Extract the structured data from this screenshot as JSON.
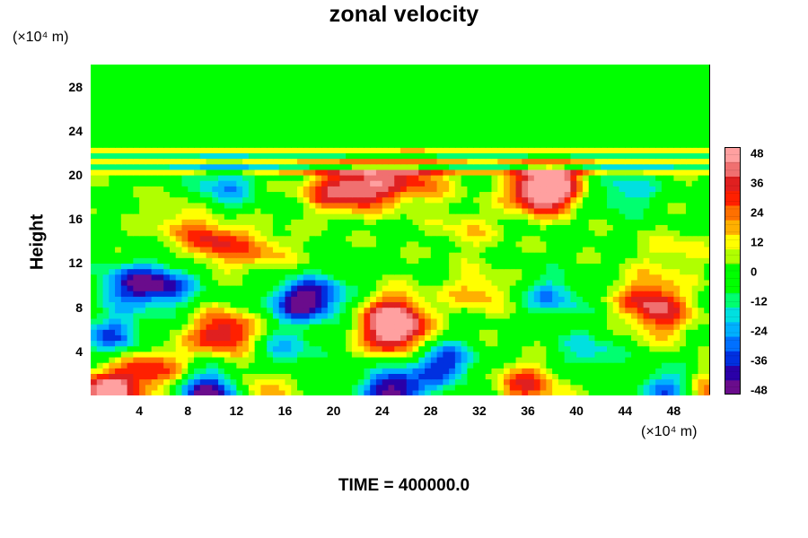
{
  "chart_data": {
    "type": "heatmap",
    "title": "zonal velocity",
    "ylabel": "Height",
    "x_unit": "(×10⁴ m)",
    "y_unit": "(×10⁴ m)",
    "xlim": [
      0,
      51
    ],
    "ylim": [
      0,
      30
    ],
    "x_ticks": [
      4,
      8,
      12,
      16,
      20,
      24,
      28,
      32,
      36,
      40,
      44,
      48
    ],
    "y_ticks": [
      4,
      8,
      12,
      16,
      20,
      24,
      28
    ],
    "colorbar": {
      "range": [
        -48,
        48
      ],
      "step": 6,
      "tick_labels": [
        48,
        36,
        24,
        12,
        0,
        -12,
        -24,
        -36,
        -48
      ],
      "colors": [
        "#6a0c8c",
        "#2a00a8",
        "#0030e0",
        "#0070ff",
        "#00b0ff",
        "#00e0e0",
        "#00ff70",
        "#00ff00",
        "#00ff00",
        "#b0ff00",
        "#ffff00",
        "#ffb000",
        "#ff7000",
        "#ff2000",
        "#e02020",
        "#f07070",
        "#ffa0a0"
      ]
    },
    "background_value": 0,
    "features": [
      {
        "x": 1.5,
        "y": 0.4,
        "value": 48
      },
      {
        "x": 5.0,
        "y": 2.5,
        "value": 30
      },
      {
        "x": 10.5,
        "y": 5.5,
        "value": 24
      },
      {
        "x": 11.5,
        "y": 6.0,
        "value": 18
      },
      {
        "x": 17.0,
        "y": 8.5,
        "value": -36
      },
      {
        "x": 19.0,
        "y": 9.0,
        "value": -24
      },
      {
        "x": 25.0,
        "y": 7.5,
        "value": 36
      },
      {
        "x": 25.0,
        "y": 5.5,
        "value": 42
      },
      {
        "x": 25.0,
        "y": 0.5,
        "value": -48
      },
      {
        "x": 10.0,
        "y": 0.3,
        "value": -48
      },
      {
        "x": 3.0,
        "y": 10.0,
        "value": -30
      },
      {
        "x": 6.0,
        "y": 10.0,
        "value": -36
      },
      {
        "x": 2.0,
        "y": 5.5,
        "value": -30
      },
      {
        "x": 20.0,
        "y": 18.5,
        "value": 30
      },
      {
        "x": 23.0,
        "y": 19.0,
        "value": 36
      },
      {
        "x": 27.0,
        "y": 19.5,
        "value": 24
      },
      {
        "x": 37.0,
        "y": 18.5,
        "value": 42
      },
      {
        "x": 38.0,
        "y": 19.0,
        "value": 30
      },
      {
        "x": 10.0,
        "y": 14.0,
        "value": 30
      },
      {
        "x": 14.0,
        "y": 13.0,
        "value": 18
      },
      {
        "x": 11.0,
        "y": 19.0,
        "value": -24
      },
      {
        "x": 29.0,
        "y": 3.0,
        "value": -36
      },
      {
        "x": 36.0,
        "y": 1.0,
        "value": 30
      },
      {
        "x": 38.0,
        "y": 9.0,
        "value": -24
      },
      {
        "x": 46.0,
        "y": 9.0,
        "value": 30
      },
      {
        "x": 47.0,
        "y": 7.0,
        "value": 24
      },
      {
        "x": 48.0,
        "y": 0.5,
        "value": -36
      },
      {
        "x": 50.5,
        "y": 0.5,
        "value": 30
      },
      {
        "x": 44.0,
        "y": 18.5,
        "value": -20
      },
      {
        "x": 32.0,
        "y": 9.5,
        "value": 18
      },
      {
        "x": 16.0,
        "y": 4.0,
        "value": -20
      },
      {
        "x": 7.0,
        "y": 16.0,
        "value": 12
      },
      {
        "x": 31.0,
        "y": 15.0,
        "value": 12
      },
      {
        "x": 48.0,
        "y": 13.0,
        "value": 12
      },
      {
        "x": 14.0,
        "y": 1.0,
        "value": 20
      },
      {
        "x": 41.0,
        "y": 4.0,
        "value": -18
      }
    ]
  },
  "footer": {
    "time_label": "TIME = 400000.0"
  }
}
